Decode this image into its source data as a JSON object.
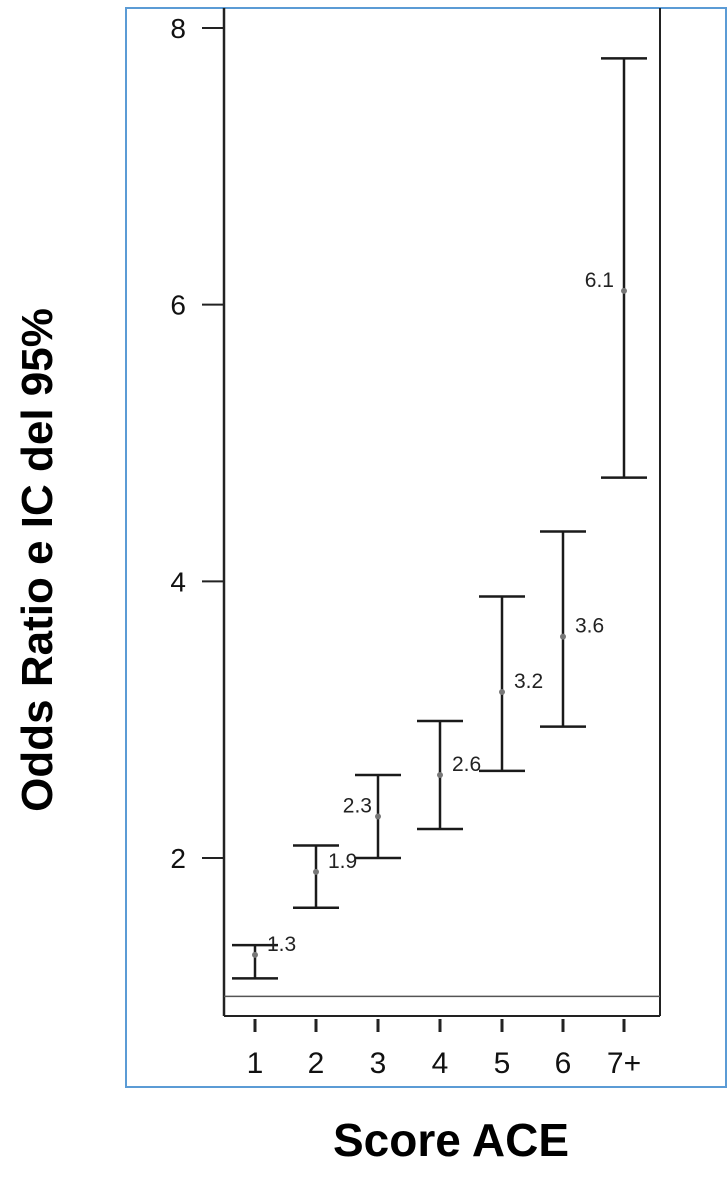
{
  "chart_data": {
    "type": "errorbar",
    "xlabel": "Score ACE",
    "ylabel": "Odds Ratio e IC del 95%",
    "categories": [
      "1",
      "2",
      "3",
      "4",
      "5",
      "6",
      "7+"
    ],
    "points": [
      {
        "category": "1",
        "or": 1.3,
        "lower": 1.13,
        "upper": 1.37,
        "label": "1.3"
      },
      {
        "category": "2",
        "or": 1.9,
        "lower": 1.64,
        "upper": 2.09,
        "label": "1.9"
      },
      {
        "category": "3",
        "or": 2.3,
        "lower": 2.0,
        "upper": 2.6,
        "label": "2.3"
      },
      {
        "category": "4",
        "or": 2.6,
        "lower": 2.21,
        "upper": 2.99,
        "label": "2.6"
      },
      {
        "category": "5",
        "or": 3.2,
        "lower": 2.63,
        "upper": 3.89,
        "label": "3.2"
      },
      {
        "category": "6",
        "or": 3.6,
        "lower": 2.95,
        "upper": 4.36,
        "label": "3.6"
      },
      {
        "category": "7+",
        "or": 6.1,
        "lower": 4.75,
        "upper": 7.78,
        "label": "6.1"
      }
    ],
    "yticks": [
      2,
      4,
      6,
      8
    ],
    "ylim": [
      0.9,
      8.2
    ],
    "reference_line": 1,
    "grid": false,
    "legend": "none"
  },
  "colors": {
    "frame": "#5b9bd5",
    "bars": "#1a1a1a",
    "axis": "#222222",
    "reference": "#555555"
  }
}
